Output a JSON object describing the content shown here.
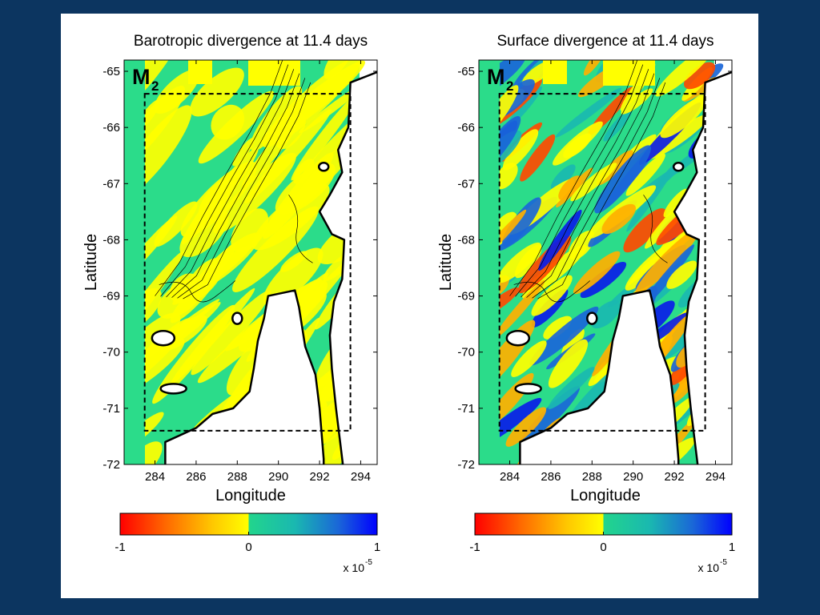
{
  "colors": {
    "background": "#0c3560",
    "slide": "#ffffff",
    "land_outline": "#000000",
    "bathymetry_contour": "#000000",
    "colormap": [
      "#ff0000",
      "#ff7a00",
      "#ffd400",
      "#ffff00",
      "#2ee08a",
      "#1fc6b8",
      "#1a5fd8",
      "#0000ff"
    ]
  },
  "chart_data": [
    {
      "type": "heatmap",
      "title": "Barotropic divergence at 11.4 days",
      "panel_label": "M",
      "panel_label_sub": "2",
      "xlabel": "Longitude",
      "ylabel": "Latitude",
      "xlim": [
        282.5,
        294.8
      ],
      "ylim": [
        -72,
        -64.8
      ],
      "xticks": [
        284,
        286,
        288,
        290,
        292,
        294
      ],
      "yticks": [
        -65,
        -66,
        -67,
        -68,
        -69,
        -70,
        -71,
        -72
      ],
      "subdomain_box": {
        "lon": [
          283.5,
          293.5
        ],
        "lat": [
          -71.4,
          -65.4
        ],
        "style": "dashed"
      },
      "colorbar": {
        "min": -1,
        "max": 1,
        "ticks": [
          -1,
          0,
          1
        ],
        "scale_label": "x 10",
        "scale_exp": "-5"
      }
    },
    {
      "type": "heatmap",
      "title": "Surface divergence at 11.4 days",
      "panel_label": "M",
      "panel_label_sub": "2",
      "xlabel": "Longitude",
      "ylabel": "Latitude",
      "xlim": [
        282.5,
        294.8
      ],
      "ylim": [
        -72,
        -64.8
      ],
      "xticks": [
        284,
        286,
        288,
        290,
        292,
        294
      ],
      "yticks": [
        -65,
        -66,
        -67,
        -68,
        -69,
        -70,
        -71,
        -72
      ],
      "subdomain_box": {
        "lon": [
          283.5,
          293.5
        ],
        "lat": [
          -71.4,
          -65.4
        ],
        "style": "dashed"
      },
      "colorbar": {
        "min": -1,
        "max": 1,
        "ticks": [
          -1,
          0,
          1
        ],
        "scale_label": "x 10",
        "scale_exp": "-5"
      }
    }
  ]
}
